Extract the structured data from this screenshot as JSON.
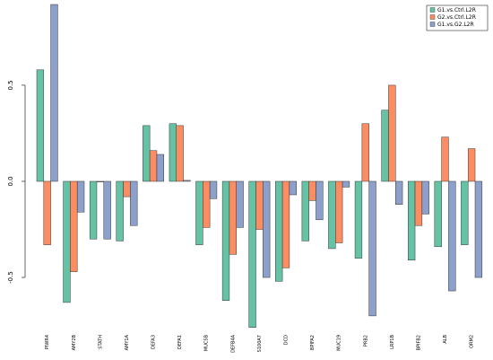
{
  "chart_data": {
    "type": "bar",
    "categories": [
      "PIWR4",
      "AMY2B",
      "STATH",
      "AMY1A",
      "DEFA3",
      "DEFA1",
      "MUC5B",
      "DEFB4A",
      "S100A7",
      "DCD",
      "BPIFA2",
      "MUC19",
      "PRB2",
      "LRP1B",
      "BPIFB2",
      "ALB",
      "ORM2"
    ],
    "series": [
      {
        "name": "G1.vs.Ctrl.L2R",
        "color": "#66C2A5",
        "values": [
          0.58,
          -0.63,
          -0.3,
          -0.31,
          0.29,
          0.3,
          -0.33,
          -0.62,
          -0.76,
          -0.52,
          -0.31,
          -0.35,
          -0.4,
          0.37,
          -0.41,
          -0.34,
          -0.33
        ]
      },
      {
        "name": "G2.vs.Ctrl.L2R",
        "color": "#FC8D62",
        "values": [
          -0.33,
          -0.47,
          0.0,
          -0.08,
          0.16,
          0.29,
          -0.24,
          -0.38,
          -0.25,
          -0.45,
          -0.1,
          -0.32,
          0.3,
          0.5,
          -0.23,
          0.23,
          0.17
        ]
      },
      {
        "name": "G1.vs.G2.L2R",
        "color": "#8DA0CB",
        "values": [
          0.92,
          -0.16,
          -0.3,
          -0.23,
          0.14,
          0.005,
          -0.09,
          -0.24,
          -0.5,
          -0.07,
          -0.2,
          -0.03,
          -0.7,
          -0.12,
          -0.17,
          -0.57,
          -0.5
        ]
      }
    ],
    "yticks": [
      "-0.5",
      "0.0",
      "0.5"
    ],
    "ytick_values": [
      -0.5,
      0.0,
      0.5
    ],
    "ylim": [
      -0.78,
      0.92
    ],
    "legend_position": "top-right",
    "grid": false
  }
}
